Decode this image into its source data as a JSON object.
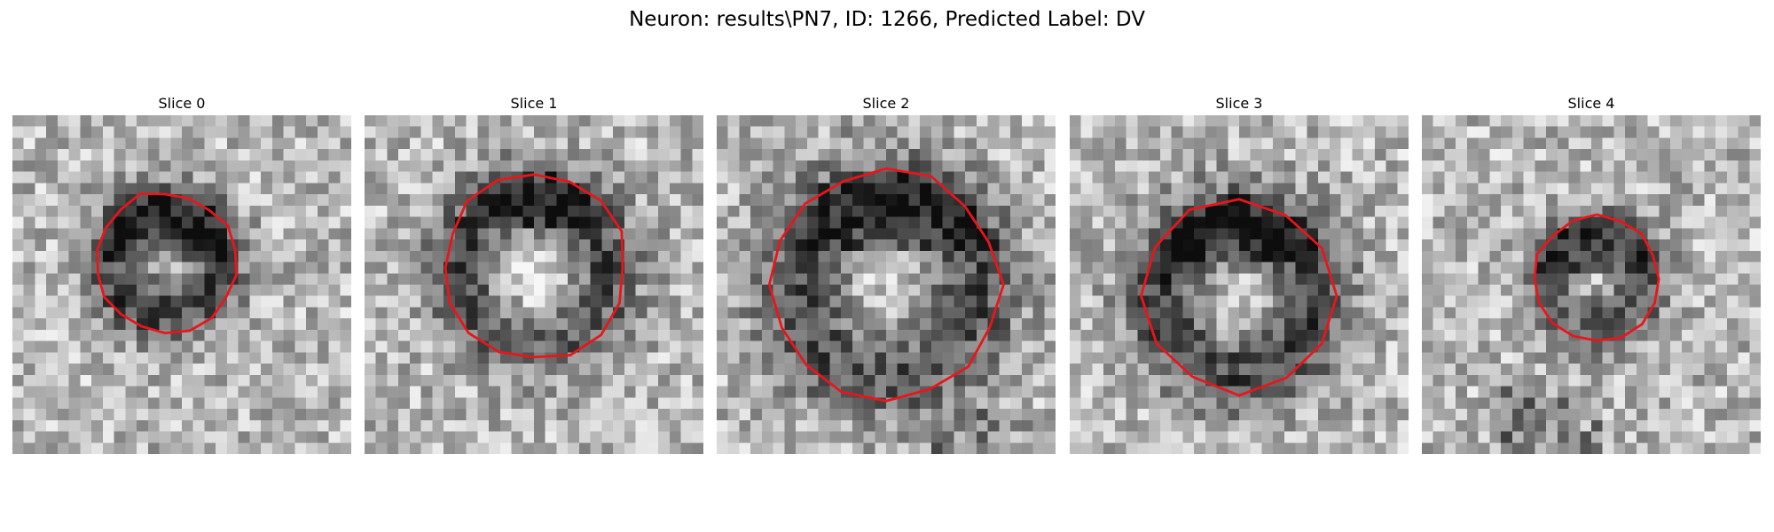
{
  "figure": {
    "title": "Neuron: results\\PN7, ID: 1266, Predicted Label: DV"
  },
  "panels": [
    {
      "title": "Slice 0"
    },
    {
      "title": "Slice 1"
    },
    {
      "title": "Slice 2"
    },
    {
      "title": "Slice 3"
    },
    {
      "title": "Slice 4"
    }
  ],
  "colors": {
    "contour": "#e8161b",
    "colormap": "grayscale"
  }
}
